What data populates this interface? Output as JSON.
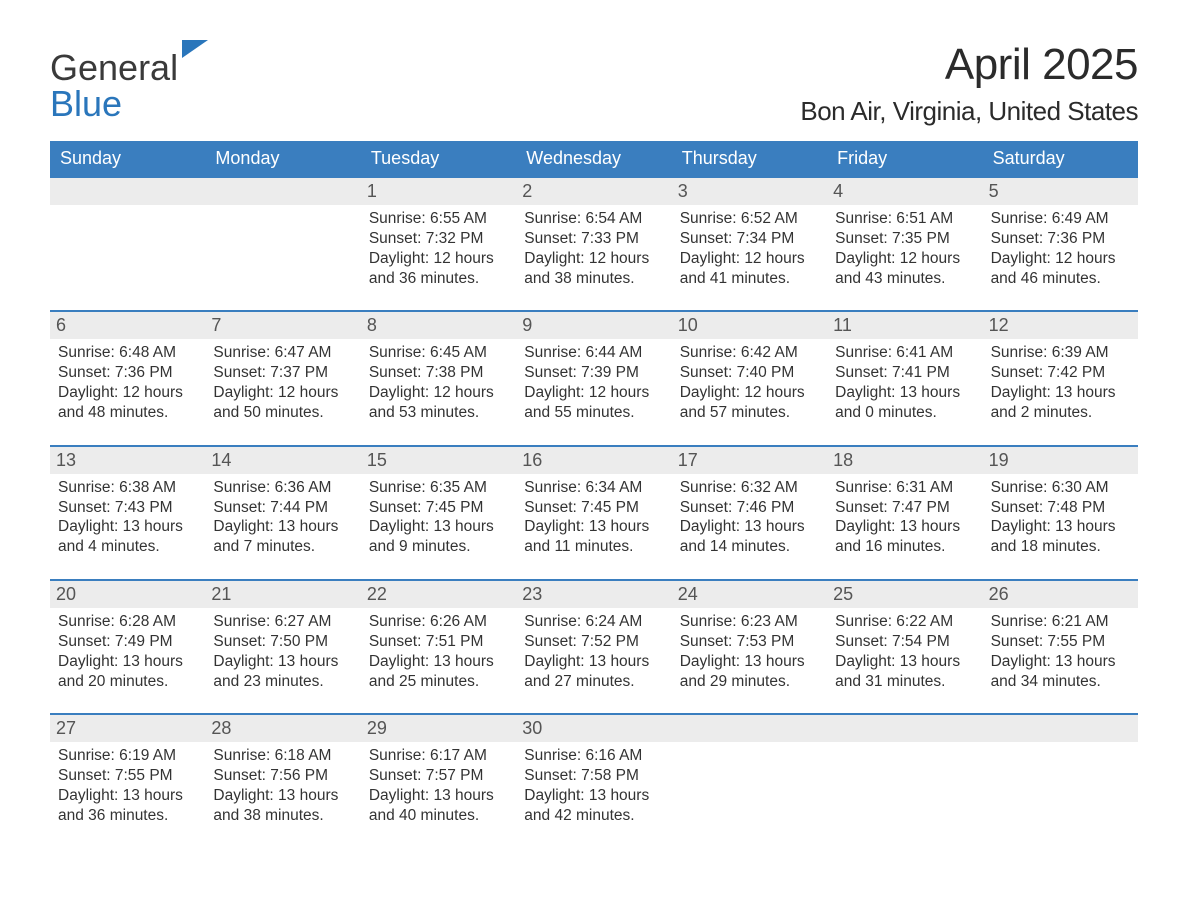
{
  "logo": {
    "general": "General",
    "blue": "Blue"
  },
  "title": {
    "month": "April 2025",
    "location": "Bon Air, Virginia, United States"
  },
  "colors": {
    "header_bg": "#3a7ebf",
    "header_text": "#ffffff",
    "daynum_bg": "#ececec",
    "daynum_text": "#555555",
    "border": "#3a7ebf",
    "body_text": "#333333",
    "logo_blue": "#2a76bb"
  },
  "daynames": [
    "Sunday",
    "Monday",
    "Tuesday",
    "Wednesday",
    "Thursday",
    "Friday",
    "Saturday"
  ],
  "leading_blanks": 2,
  "days": [
    {
      "n": "1",
      "sunrise": "6:55 AM",
      "sunset": "7:32 PM",
      "dh": "12",
      "dm": "36"
    },
    {
      "n": "2",
      "sunrise": "6:54 AM",
      "sunset": "7:33 PM",
      "dh": "12",
      "dm": "38"
    },
    {
      "n": "3",
      "sunrise": "6:52 AM",
      "sunset": "7:34 PM",
      "dh": "12",
      "dm": "41"
    },
    {
      "n": "4",
      "sunrise": "6:51 AM",
      "sunset": "7:35 PM",
      "dh": "12",
      "dm": "43"
    },
    {
      "n": "5",
      "sunrise": "6:49 AM",
      "sunset": "7:36 PM",
      "dh": "12",
      "dm": "46"
    },
    {
      "n": "6",
      "sunrise": "6:48 AM",
      "sunset": "7:36 PM",
      "dh": "12",
      "dm": "48"
    },
    {
      "n": "7",
      "sunrise": "6:47 AM",
      "sunset": "7:37 PM",
      "dh": "12",
      "dm": "50"
    },
    {
      "n": "8",
      "sunrise": "6:45 AM",
      "sunset": "7:38 PM",
      "dh": "12",
      "dm": "53"
    },
    {
      "n": "9",
      "sunrise": "6:44 AM",
      "sunset": "7:39 PM",
      "dh": "12",
      "dm": "55"
    },
    {
      "n": "10",
      "sunrise": "6:42 AM",
      "sunset": "7:40 PM",
      "dh": "12",
      "dm": "57"
    },
    {
      "n": "11",
      "sunrise": "6:41 AM",
      "sunset": "7:41 PM",
      "dh": "13",
      "dm": "0"
    },
    {
      "n": "12",
      "sunrise": "6:39 AM",
      "sunset": "7:42 PM",
      "dh": "13",
      "dm": "2"
    },
    {
      "n": "13",
      "sunrise": "6:38 AM",
      "sunset": "7:43 PM",
      "dh": "13",
      "dm": "4"
    },
    {
      "n": "14",
      "sunrise": "6:36 AM",
      "sunset": "7:44 PM",
      "dh": "13",
      "dm": "7"
    },
    {
      "n": "15",
      "sunrise": "6:35 AM",
      "sunset": "7:45 PM",
      "dh": "13",
      "dm": "9"
    },
    {
      "n": "16",
      "sunrise": "6:34 AM",
      "sunset": "7:45 PM",
      "dh": "13",
      "dm": "11"
    },
    {
      "n": "17",
      "sunrise": "6:32 AM",
      "sunset": "7:46 PM",
      "dh": "13",
      "dm": "14"
    },
    {
      "n": "18",
      "sunrise": "6:31 AM",
      "sunset": "7:47 PM",
      "dh": "13",
      "dm": "16"
    },
    {
      "n": "19",
      "sunrise": "6:30 AM",
      "sunset": "7:48 PM",
      "dh": "13",
      "dm": "18"
    },
    {
      "n": "20",
      "sunrise": "6:28 AM",
      "sunset": "7:49 PM",
      "dh": "13",
      "dm": "20"
    },
    {
      "n": "21",
      "sunrise": "6:27 AM",
      "sunset": "7:50 PM",
      "dh": "13",
      "dm": "23"
    },
    {
      "n": "22",
      "sunrise": "6:26 AM",
      "sunset": "7:51 PM",
      "dh": "13",
      "dm": "25"
    },
    {
      "n": "23",
      "sunrise": "6:24 AM",
      "sunset": "7:52 PM",
      "dh": "13",
      "dm": "27"
    },
    {
      "n": "24",
      "sunrise": "6:23 AM",
      "sunset": "7:53 PM",
      "dh": "13",
      "dm": "29"
    },
    {
      "n": "25",
      "sunrise": "6:22 AM",
      "sunset": "7:54 PM",
      "dh": "13",
      "dm": "31"
    },
    {
      "n": "26",
      "sunrise": "6:21 AM",
      "sunset": "7:55 PM",
      "dh": "13",
      "dm": "34"
    },
    {
      "n": "27",
      "sunrise": "6:19 AM",
      "sunset": "7:55 PM",
      "dh": "13",
      "dm": "36"
    },
    {
      "n": "28",
      "sunrise": "6:18 AM",
      "sunset": "7:56 PM",
      "dh": "13",
      "dm": "38"
    },
    {
      "n": "29",
      "sunrise": "6:17 AM",
      "sunset": "7:57 PM",
      "dh": "13",
      "dm": "40"
    },
    {
      "n": "30",
      "sunrise": "6:16 AM",
      "sunset": "7:58 PM",
      "dh": "13",
      "dm": "42"
    }
  ],
  "labels": {
    "sunrise": "Sunrise: ",
    "sunset": "Sunset: ",
    "daylight_prefix": "Daylight: ",
    "hours_word": " hours",
    "and_word": "and ",
    "minutes_word": " minutes."
  }
}
